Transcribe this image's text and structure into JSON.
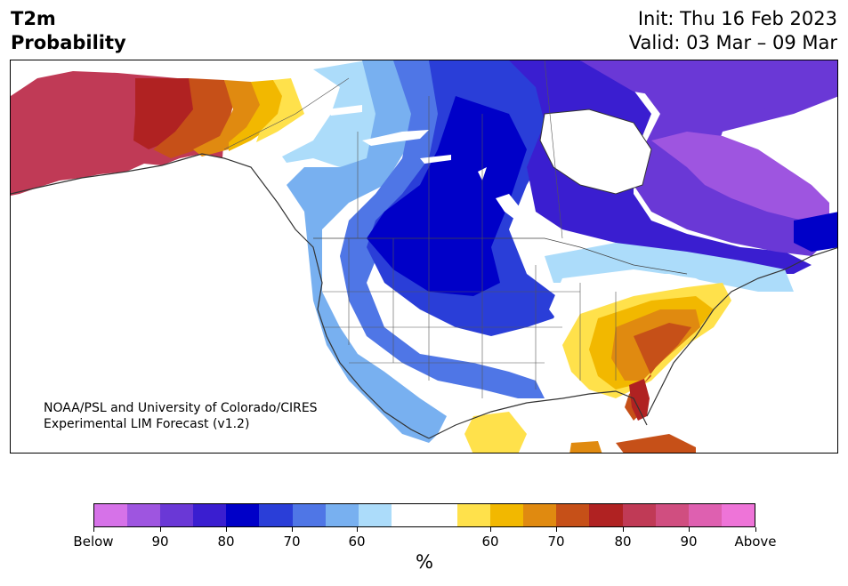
{
  "title": {
    "line1": "T2m",
    "line2": "Probability"
  },
  "info": {
    "init": "Init: Thu 16 Feb 2023",
    "valid": "Valid: 03 Mar – 09 Mar"
  },
  "credit": {
    "line1": "NOAA/PSL and University of Colorado/CIRES",
    "line2": "Experimental LIM Forecast (v1.2)"
  },
  "colorbar": {
    "colors": [
      "#d672e8",
      "#9e55e0",
      "#6a38d6",
      "#3a1ed0",
      "#0000c8",
      "#2a3ed8",
      "#4f76e6",
      "#78b0f0",
      "#acdcfa",
      "#ffffff",
      "#ffffff",
      "#ffe14b",
      "#f2b800",
      "#e08a10",
      "#c65018",
      "#b02222",
      "#c03a56",
      "#d04e80",
      "#de60b0",
      "#ee74d8"
    ],
    "tick_labels": [
      "Below",
      "90",
      "80",
      "70",
      "60",
      "60",
      "70",
      "80",
      "90",
      "Above"
    ],
    "unit": "%"
  }
}
